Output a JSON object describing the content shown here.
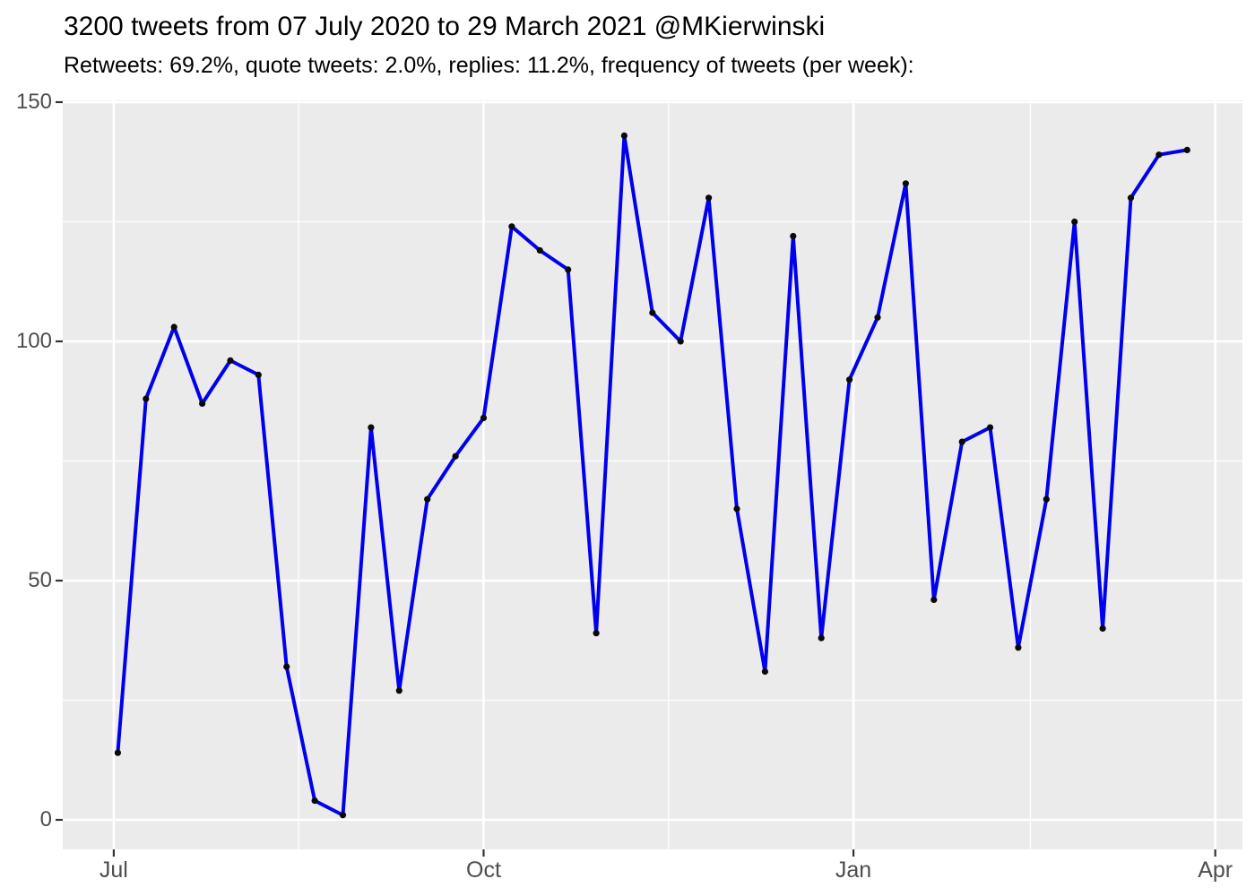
{
  "chart_data": {
    "type": "line",
    "title": "3200 tweets from 07 July 2020 to 29 March 2021 @MKierwinski",
    "subtitle": "Retweets: 69.2%, quote tweets: 2.0%, replies: 11.2%, frequency of tweets (per week):",
    "xlabel": "",
    "ylabel": "",
    "series_name": "tweets-per-week",
    "x": [
      "2020-07-02",
      "2020-07-09",
      "2020-07-16",
      "2020-07-23",
      "2020-07-30",
      "2020-08-06",
      "2020-08-13",
      "2020-08-20",
      "2020-08-27",
      "2020-09-03",
      "2020-09-10",
      "2020-09-17",
      "2020-09-24",
      "2020-10-01",
      "2020-10-08",
      "2020-10-15",
      "2020-10-22",
      "2020-10-29",
      "2020-11-05",
      "2020-11-12",
      "2020-11-19",
      "2020-11-26",
      "2020-12-03",
      "2020-12-10",
      "2020-12-17",
      "2020-12-24",
      "2020-12-31",
      "2021-01-07",
      "2021-01-14",
      "2021-01-21",
      "2021-01-28",
      "2021-02-04",
      "2021-02-11",
      "2021-02-18",
      "2021-02-25",
      "2021-03-04",
      "2021-03-11",
      "2021-03-18",
      "2021-03-25"
    ],
    "values": [
      14,
      88,
      103,
      87,
      96,
      93,
      32,
      4,
      1,
      82,
      27,
      67,
      76,
      84,
      124,
      119,
      115,
      39,
      143,
      106,
      100,
      130,
      65,
      31,
      122,
      38,
      92,
      105,
      133,
      46,
      79,
      82,
      36,
      67,
      125,
      40,
      130,
      139,
      140
    ],
    "x_axis": {
      "tick_labels": [
        "Jul",
        "Oct",
        "Jan",
        "Apr"
      ],
      "tick_dates": [
        "2020-07-01",
        "2020-10-01",
        "2021-01-01",
        "2021-04-01"
      ],
      "minor_grid_dates": [
        "2020-08-16",
        "2020-11-16",
        "2021-02-14"
      ]
    },
    "y_axis": {
      "tick_labels": [
        "0",
        "50",
        "100",
        "150"
      ],
      "ticks": [
        0,
        50,
        100,
        150
      ],
      "minor_grid": [
        25,
        75,
        125
      ],
      "range": [
        0,
        150
      ]
    },
    "grid": true,
    "legend": "none",
    "colors": {
      "line": "#0000EE",
      "point": "#0A0A0A",
      "panel_bg": "#EBEBEB",
      "grid": "#FFFFFF",
      "axis_text": "#4D4D4D",
      "tick_mark": "#333333",
      "title_text": "#000000"
    }
  }
}
